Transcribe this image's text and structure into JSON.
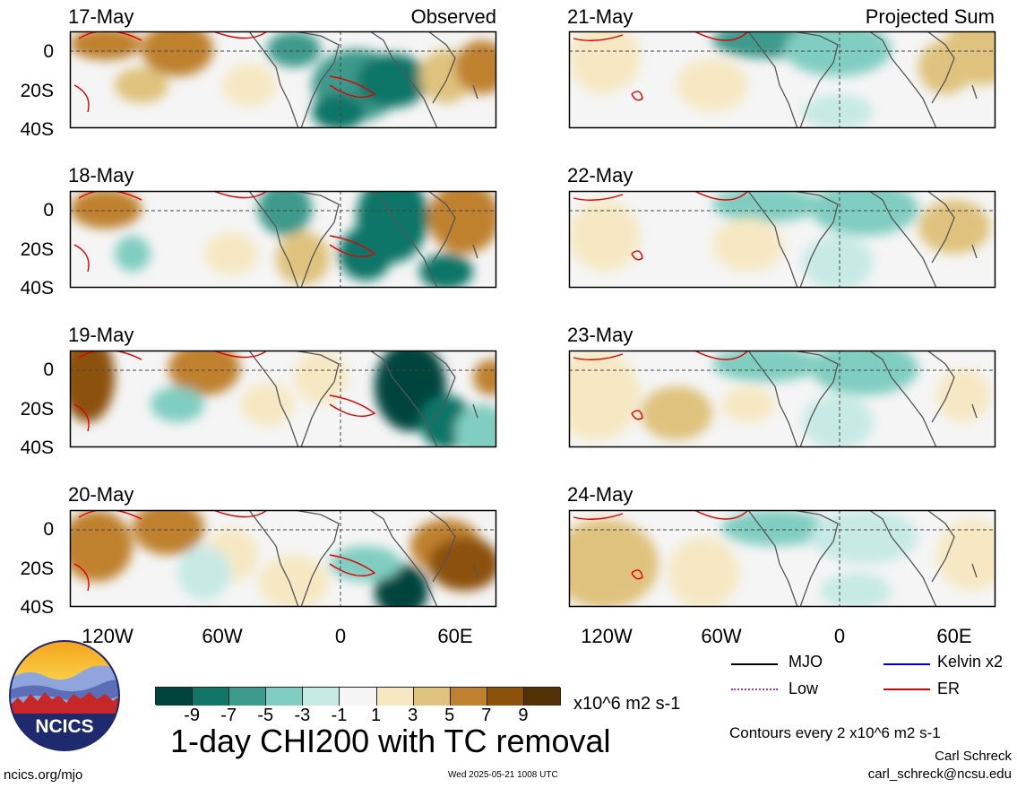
{
  "panels": {
    "observed_label": "Observed",
    "projected_label": "Projected Sum",
    "left_dates": [
      "17-May",
      "18-May",
      "19-May",
      "20-May"
    ],
    "right_dates": [
      "21-May",
      "22-May",
      "23-May",
      "24-May"
    ]
  },
  "axes": {
    "lat_labels": [
      "0",
      "20S",
      "40S"
    ],
    "lon_labels": [
      "120W",
      "60W",
      "0",
      "60E"
    ]
  },
  "colorbar": {
    "ticks": [
      "-9",
      "-7",
      "-5",
      "-3",
      "-1",
      "1",
      "3",
      "5",
      "7",
      "9"
    ],
    "units": "x10^6 m2 s-1",
    "colors": [
      "#00443c",
      "#117667",
      "#3d9a8c",
      "#80cdc1",
      "#c7eae5",
      "#f5f5f5",
      "#f6e8c3",
      "#dfc27d",
      "#bf812d",
      "#8c510a",
      "#543005"
    ]
  },
  "title": "1-day CHI200 with TC removal",
  "legend": {
    "items": [
      {
        "label": "MJO",
        "color": "#000000"
      },
      {
        "label": "Kelvin x2",
        "color": "#0000cc"
      },
      {
        "label": "Low",
        "color": "#9b30d0"
      },
      {
        "label": "ER",
        "color": "#e00000"
      }
    ],
    "contour_note": "Contours every 2 x10^6 m2 s-1"
  },
  "footer": {
    "site": "ncics.org/mjo",
    "timestamp": "Wed 2025-05-21 1008 UTC",
    "author": "Carl Schreck",
    "email": "carl_schreck@ncsu.edu"
  },
  "logo": {
    "text": "NCICS"
  },
  "colors": {
    "land_outline": "#555555",
    "er_contour": "#e00000",
    "grid_dash": "#444444"
  }
}
